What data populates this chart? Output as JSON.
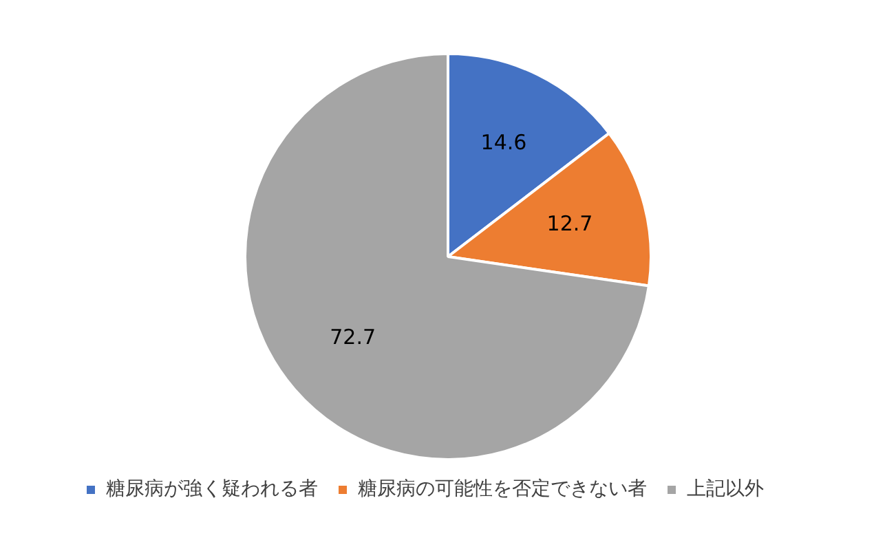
{
  "chart_data": {
    "type": "pie",
    "categories": [
      "糖尿病が強く疑われる者",
      "糖尿病の可能性を否定できない者",
      "上記以外"
    ],
    "values": [
      14.6,
      12.7,
      72.7
    ],
    "colors": [
      "#4472c4",
      "#ed7d31",
      "#a5a5a5"
    ],
    "data_labels": true,
    "legend": "bottom"
  }
}
